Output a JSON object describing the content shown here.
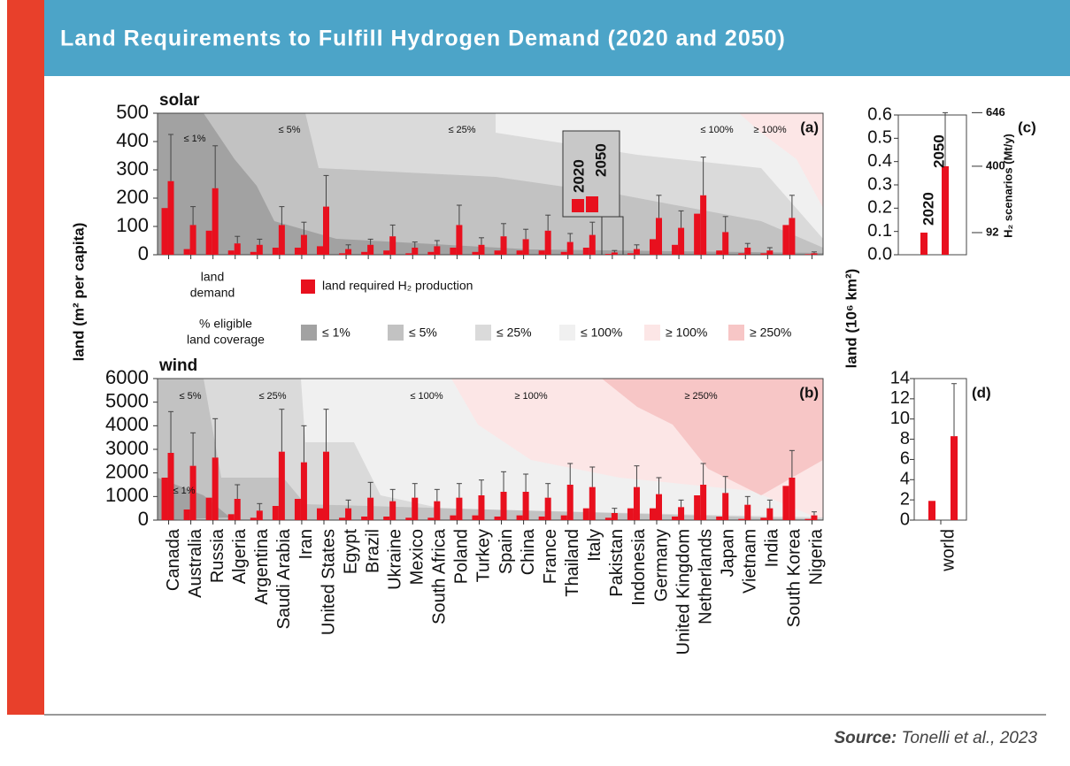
{
  "title": "Land Requirements to Fulfill Hydrogen Demand (2020 and 2050)",
  "source": {
    "label": "Source:",
    "text": "Tonelli et al., 2023"
  },
  "y_label": "land (m² per capita)",
  "y2_label": "land (10⁶ km²)",
  "legend": {
    "demand_label": [
      "land",
      "demand"
    ],
    "required_label": "land required H₂ production",
    "coverage_label": [
      "% eligible",
      "land coverage"
    ],
    "coverage": [
      {
        "name": "≤ 1%",
        "color": "#a2a2a2"
      },
      {
        "name": "≤ 5%",
        "color": "#c2c2c2"
      },
      {
        "name": "≤ 25%",
        "color": "#dadada"
      },
      {
        "name": "≤ 100%",
        "color": "#f0f0f0"
      },
      {
        "name": "≥ 100%",
        "color": "#fce6e6"
      },
      {
        "name": "≥ 250%",
        "color": "#f7c6c6"
      }
    ]
  },
  "chart_data": [
    {
      "type": "bar",
      "title": "solar",
      "panel": "(a)",
      "ylim": [
        0,
        500
      ],
      "yticks": [
        0,
        100,
        200,
        300,
        400,
        500
      ],
      "series": [
        {
          "name": "2020",
          "color": "#e8101e",
          "values": [
            165,
            20,
            85,
            15,
            10,
            25,
            25,
            30,
            5,
            10,
            15,
            5,
            10,
            25,
            10,
            15,
            15,
            15,
            10,
            25,
            3,
            5,
            55,
            35,
            145,
            15,
            5,
            5,
            105,
            2
          ]
        },
        {
          "name": "2050",
          "color": "#e8101e",
          "values": [
            260,
            105,
            235,
            40,
            35,
            105,
            70,
            170,
            20,
            35,
            65,
            25,
            30,
            105,
            35,
            65,
            55,
            85,
            45,
            70,
            8,
            20,
            130,
            95,
            210,
            80,
            25,
            15,
            130,
            5
          ],
          "upper": [
            425,
            170,
            385,
            65,
            55,
            170,
            115,
            280,
            35,
            55,
            105,
            45,
            50,
            175,
            60,
            110,
            90,
            140,
            75,
            115,
            15,
            35,
            210,
            155,
            345,
            135,
            40,
            25,
            210,
            10
          ]
        }
      ],
      "annotations": [
        "≤ 1%",
        "≤ 5%",
        "≤ 25%",
        "≤ 100%",
        "≥ 100%"
      ]
    },
    {
      "type": "bar",
      "title": "wind",
      "panel": "(b)",
      "categories": [
        "Canada",
        "Australia",
        "Russia",
        "Algeria",
        "Argentina",
        "Saudi Arabia",
        "Iran",
        "United States",
        "Egypt",
        "Brazil",
        "Ukraine",
        "Mexico",
        "South Africa",
        "Poland",
        "Turkey",
        "Spain",
        "China",
        "France",
        "Thailand",
        "Italy",
        "Pakistan",
        "Indonesia",
        "Germany",
        "United Kingdom",
        "Netherlands",
        "Japan",
        "Vietnam",
        "India",
        "South Korea",
        "Nigeria"
      ],
      "ylim": [
        0,
        6000
      ],
      "yticks": [
        0,
        1000,
        2000,
        3000,
        4000,
        5000,
        6000
      ],
      "series": [
        {
          "name": "2020",
          "color": "#e8101e",
          "values": [
            1800,
            450,
            950,
            250,
            100,
            600,
            900,
            500,
            100,
            150,
            150,
            100,
            100,
            200,
            200,
            150,
            200,
            150,
            200,
            500,
            100,
            500,
            500,
            150,
            1050,
            150,
            50,
            100,
            1450,
            50
          ]
        },
        {
          "name": "2050",
          "color": "#e8101e",
          "values": [
            2850,
            2300,
            2650,
            900,
            400,
            2900,
            2450,
            2900,
            500,
            950,
            800,
            950,
            800,
            950,
            1050,
            1200,
            1200,
            950,
            1500,
            1400,
            300,
            1400,
            1100,
            550,
            1500,
            1150,
            650,
            500,
            1800,
            200
          ],
          "upper": [
            4600,
            3700,
            4300,
            1500,
            700,
            4700,
            4000,
            4700,
            850,
            1600,
            1300,
            1550,
            1300,
            1550,
            1700,
            2050,
            1950,
            1550,
            2400,
            2250,
            500,
            2300,
            1800,
            850,
            2400,
            1850,
            1000,
            850,
            2950,
            350
          ]
        }
      ],
      "annotations": [
        "≤ 5%",
        "≤ 25%",
        "≤ 100%",
        "≥ 100%",
        "≥ 250%",
        "≤ 1%"
      ]
    },
    {
      "type": "bar",
      "panel": "(c)",
      "ylim": [
        0,
        0.6
      ],
      "yticks": [
        {
          "value": 0,
          "label": "0.0"
        },
        0.1,
        0.2,
        0.3,
        0.4,
        0.5,
        0.6
      ],
      "series": [
        {
          "name": "2020",
          "color": "#e8101e",
          "values": [
            0.095
          ]
        },
        {
          "name": "2050",
          "color": "#e8101e",
          "values": [
            0.38
          ],
          "upper": [
            0.61
          ]
        }
      ],
      "y2_label": "H₂ scenarios (Mt/y)",
      "scenarios": [
        646,
        400,
        92
      ]
    },
    {
      "type": "bar",
      "panel": "(d)",
      "categories": [
        "world"
      ],
      "ylim": [
        0,
        14
      ],
      "yticks": [
        0,
        2,
        4,
        6,
        8,
        10,
        12,
        14
      ],
      "series": [
        {
          "name": "2020",
          "color": "#e8101e",
          "values": [
            1.9
          ]
        },
        {
          "name": "2050",
          "color": "#e8101e",
          "values": [
            8.3
          ],
          "upper": [
            13.5
          ]
        }
      ]
    }
  ]
}
